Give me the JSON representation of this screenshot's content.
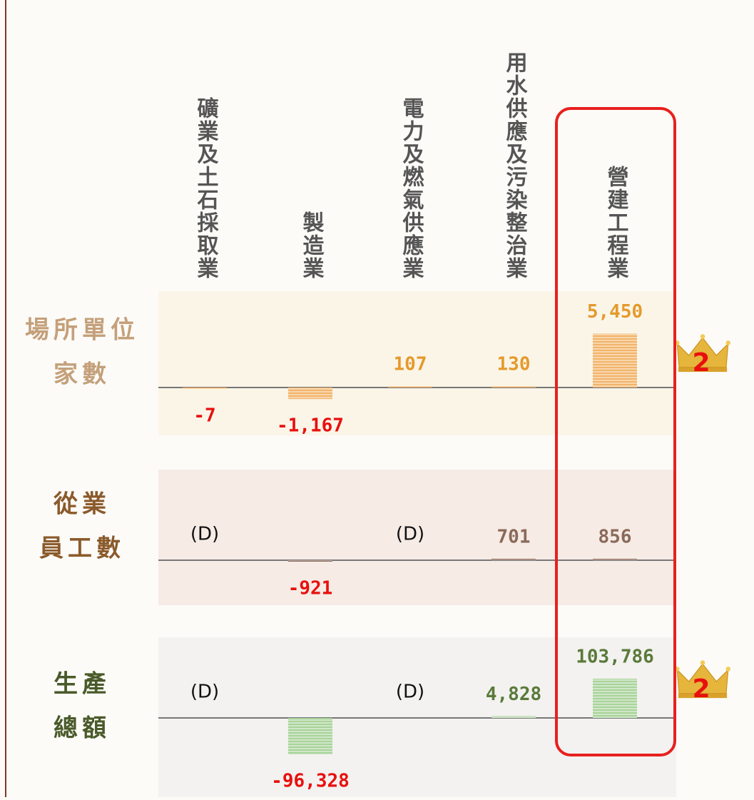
{
  "chart_data": {
    "type": "bar",
    "categories": [
      "礦業及土石採取業",
      "製造業",
      "電力及燃氣供應業",
      "用水供應及污染整治業",
      "營建工程業"
    ],
    "series": [
      {
        "name": [
          "場所單位",
          "家數"
        ],
        "color": "#f2b46a",
        "label_color": "#c4a07a",
        "value_color": "#e49a2c",
        "values": [
          -7,
          -1167,
          107,
          130,
          5450
        ],
        "value_labels": [
          "-7",
          "-1,167",
          "107",
          "130",
          "5,450"
        ],
        "ylim": [
          -6500,
          6500
        ],
        "rank": 2
      },
      {
        "name": [
          "從業",
          "員工數"
        ],
        "color": "#8b6a5a",
        "label_color": "#8b5a2b",
        "value_color": "#8b6a5a",
        "values": [
          null,
          -921,
          null,
          701,
          856
        ],
        "value_labels": [
          "(D)",
          "-921",
          "(D)",
          "701",
          "856"
        ],
        "ylim": [
          -60000,
          60000
        ]
      },
      {
        "name": [
          "生產",
          "總額"
        ],
        "color": "#a9d39a",
        "label_color": "#4a5a2a",
        "value_color": "#5a7a3a",
        "values": [
          null,
          -96328,
          null,
          4828,
          103786
        ],
        "value_labels": [
          "(D)",
          "-96,328",
          "(D)",
          "4,828",
          "103,786"
        ],
        "ylim": [
          -170000,
          170000
        ],
        "rank": 2
      }
    ]
  }
}
